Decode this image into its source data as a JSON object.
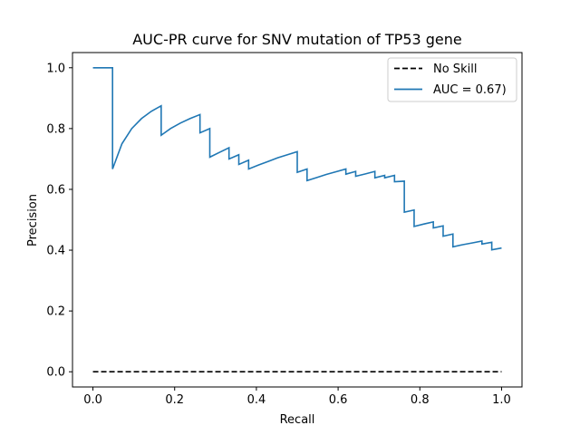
{
  "chart_data": {
    "type": "line",
    "title": "AUC-PR curve for SNV mutation of TP53 gene",
    "xlabel": "Recall",
    "ylabel": "Precision",
    "xlim": [
      -0.05,
      1.05
    ],
    "ylim": [
      -0.05,
      1.05
    ],
    "xticks": [
      "0.0",
      "0.2",
      "0.4",
      "0.6",
      "0.8",
      "1.0"
    ],
    "yticks": [
      "0.0",
      "0.2",
      "0.4",
      "0.6",
      "0.8",
      "1.0"
    ],
    "grid": false,
    "legend": "top-right",
    "series": [
      {
        "name": "No Skill",
        "style": "dashed",
        "color": "#000000",
        "x": [
          0.0,
          1.0
        ],
        "y": [
          0.0,
          0.0
        ]
      },
      {
        "name": "AUC = 0.67)",
        "style": "solid",
        "color": "#1f77b4",
        "x": [
          0.0,
          0.048,
          0.048,
          0.071,
          0.095,
          0.119,
          0.143,
          0.167,
          0.167,
          0.19,
          0.214,
          0.238,
          0.262,
          0.262,
          0.286,
          0.286,
          0.31,
          0.333,
          0.333,
          0.357,
          0.357,
          0.381,
          0.381,
          0.405,
          0.429,
          0.452,
          0.476,
          0.5,
          0.5,
          0.524,
          0.524,
          0.548,
          0.571,
          0.595,
          0.619,
          0.619,
          0.643,
          0.643,
          0.667,
          0.69,
          0.69,
          0.714,
          0.714,
          0.738,
          0.738,
          0.762,
          0.762,
          0.786,
          0.786,
          0.81,
          0.833,
          0.833,
          0.857,
          0.857,
          0.881,
          0.881,
          0.905,
          0.929,
          0.952,
          0.952,
          0.976,
          0.976,
          1.0
        ],
        "y": [
          1.0,
          1.0,
          0.667,
          0.75,
          0.8,
          0.833,
          0.857,
          0.875,
          0.778,
          0.8,
          0.818,
          0.833,
          0.846,
          0.786,
          0.8,
          0.706,
          0.722,
          0.737,
          0.7,
          0.714,
          0.682,
          0.696,
          0.667,
          0.68,
          0.692,
          0.704,
          0.714,
          0.724,
          0.656,
          0.667,
          0.629,
          0.639,
          0.649,
          0.658,
          0.667,
          0.65,
          0.659,
          0.643,
          0.651,
          0.659,
          0.638,
          0.646,
          0.638,
          0.646,
          0.625,
          0.627,
          0.525,
          0.532,
          0.478,
          0.486,
          0.493,
          0.473,
          0.48,
          0.446,
          0.453,
          0.411,
          0.418,
          0.424,
          0.43,
          0.42,
          0.426,
          0.401,
          0.407
        ]
      }
    ]
  }
}
